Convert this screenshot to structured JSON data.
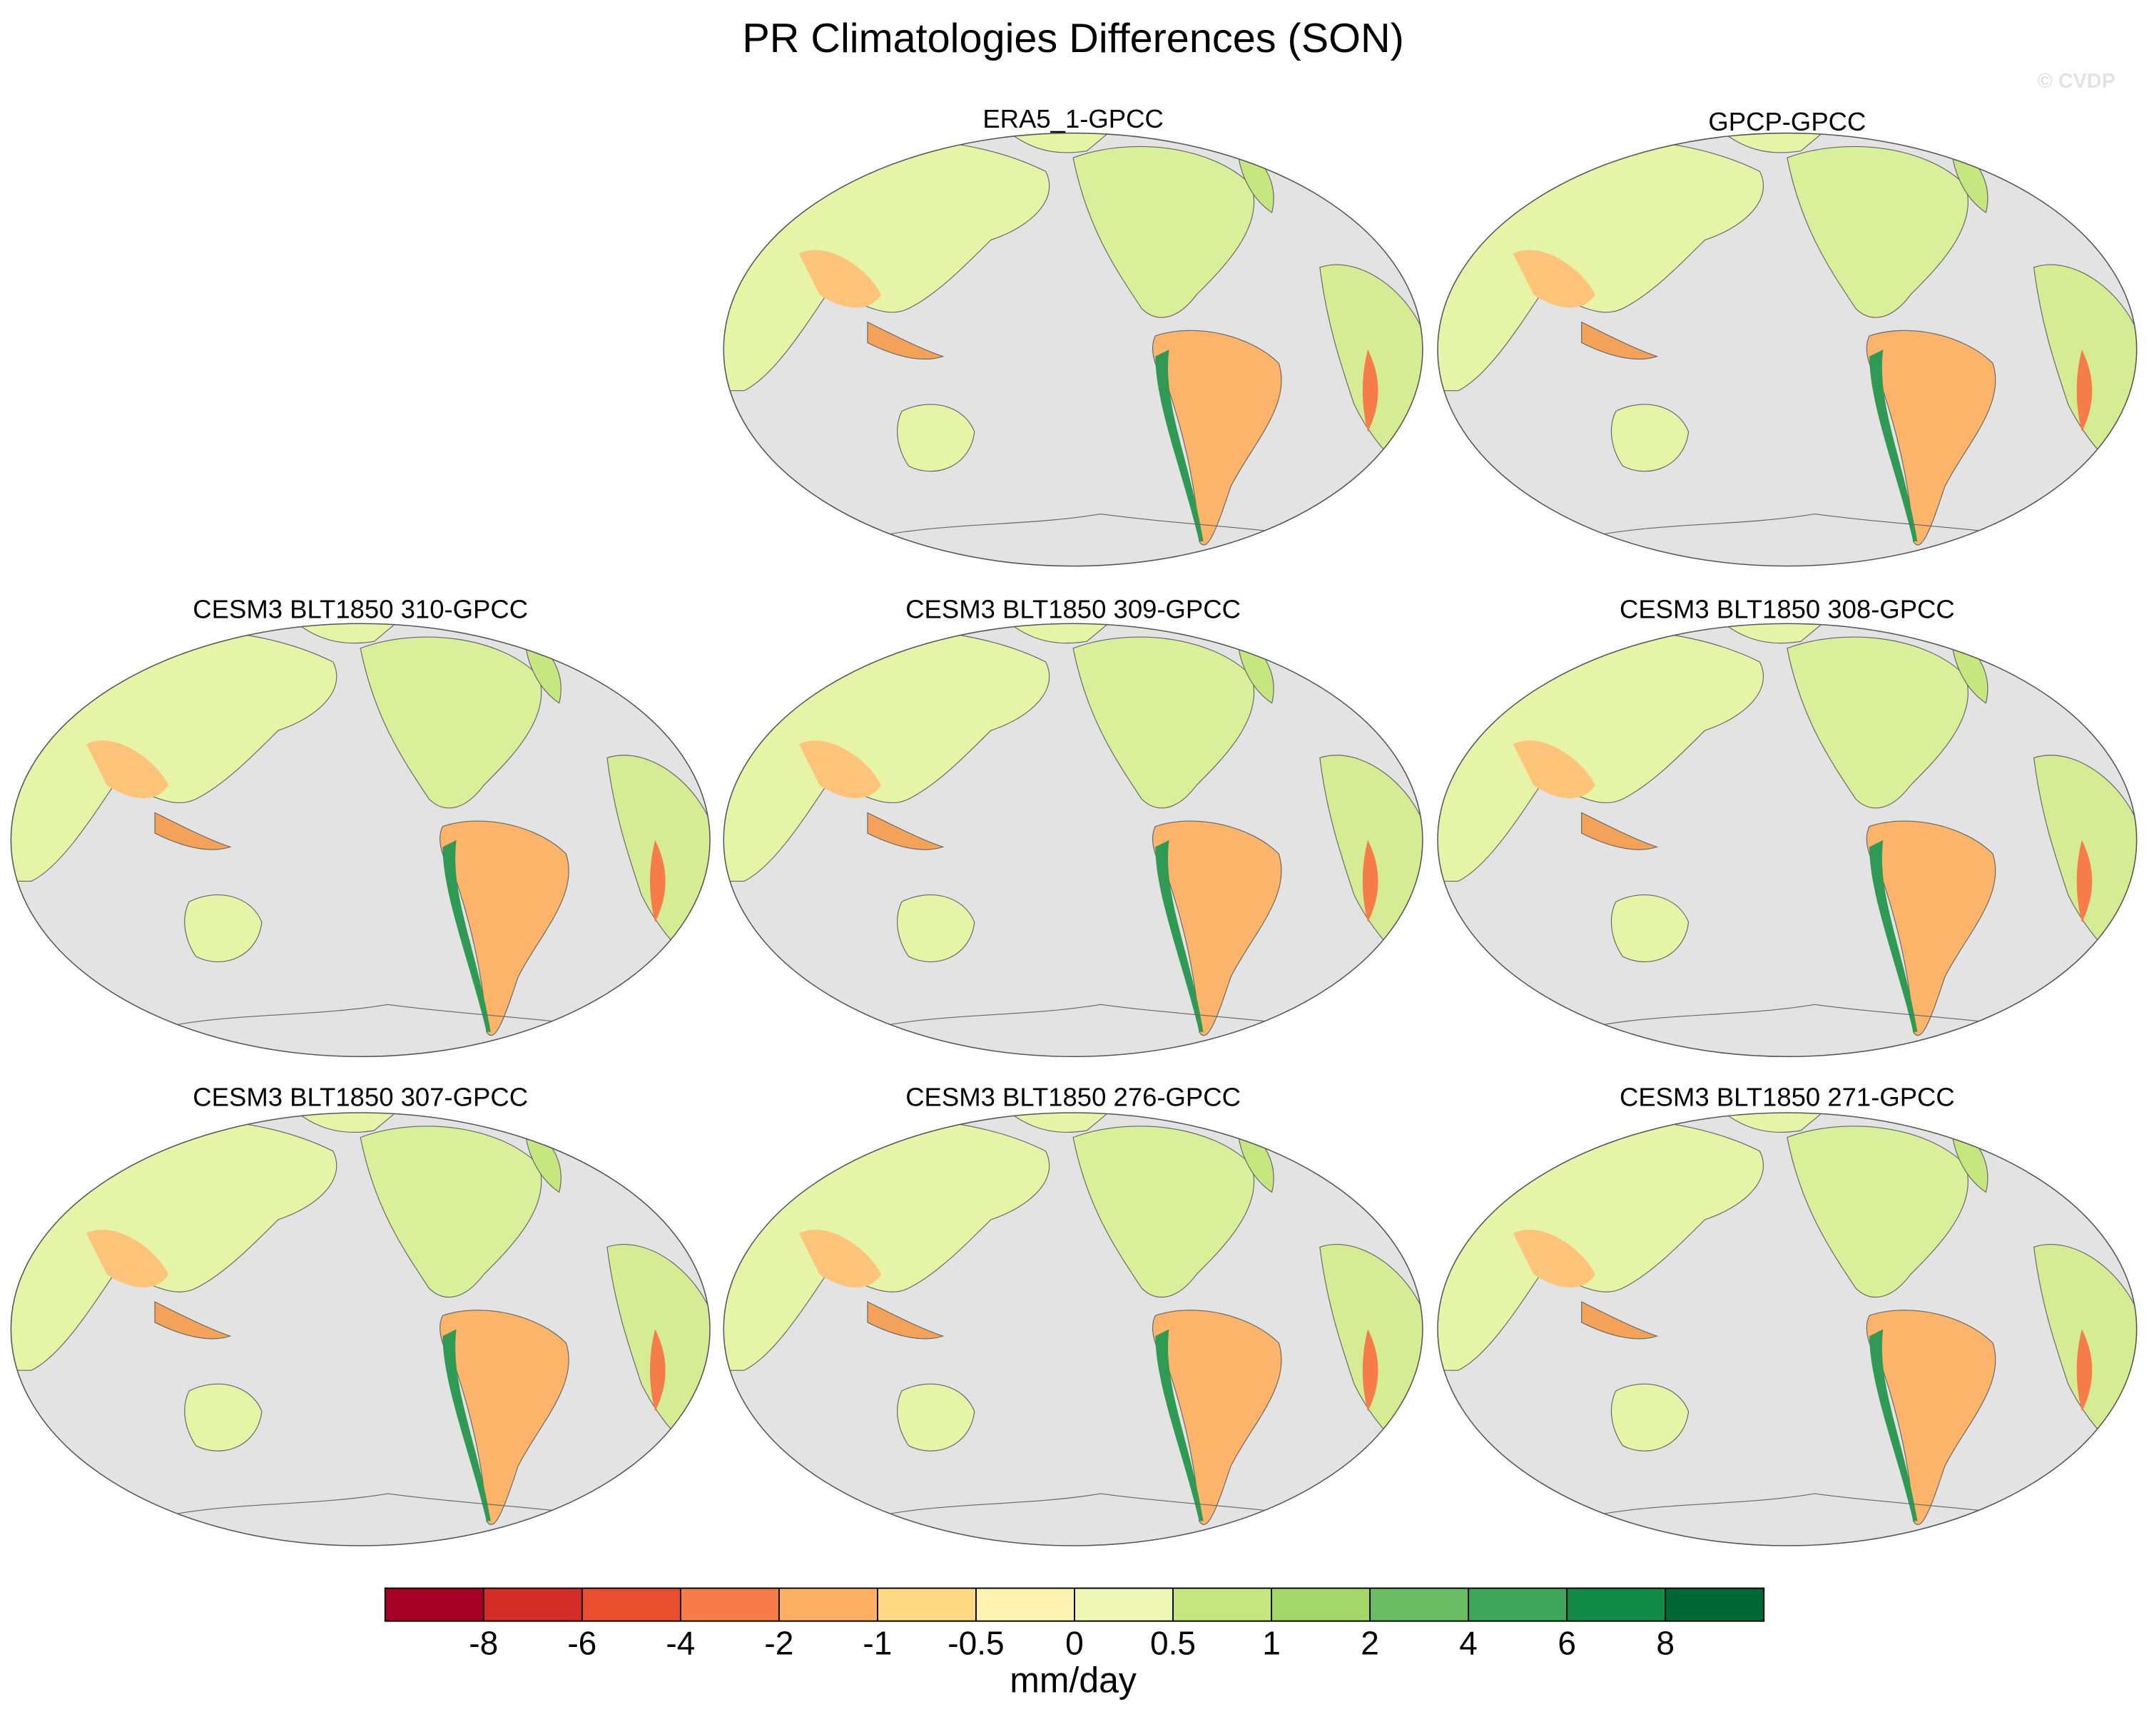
{
  "title": "PR Climatologies Differences (SON)",
  "watermark": "© CVDP",
  "panels": [
    "ERA5_1-GPCC",
    "GPCP-GPCC",
    "CESM3 BLT1850 310-GPCC",
    "CESM3 BLT1850 309-GPCC",
    "CESM3 BLT1850 308-GPCC",
    "CESM3 BLT1850 307-GPCC",
    "CESM3 BLT1850 276-GPCC",
    "CESM3 BLT1850 271-GPCC"
  ],
  "colorbar": {
    "colors": [
      "#a50026",
      "#d42d27",
      "#e8502f",
      "#f67c4a",
      "#fdb063",
      "#fed883",
      "#fff3b2",
      "#eef8b4",
      "#c6e67f",
      "#a5d86a",
      "#6bbd63",
      "#3ea65a",
      "#128a48",
      "#006837"
    ],
    "ticks": [
      -8,
      -6,
      -4,
      -2,
      -1,
      -0.5,
      0,
      0.5,
      1,
      2,
      4,
      6,
      8
    ],
    "label": "mm/day"
  }
}
